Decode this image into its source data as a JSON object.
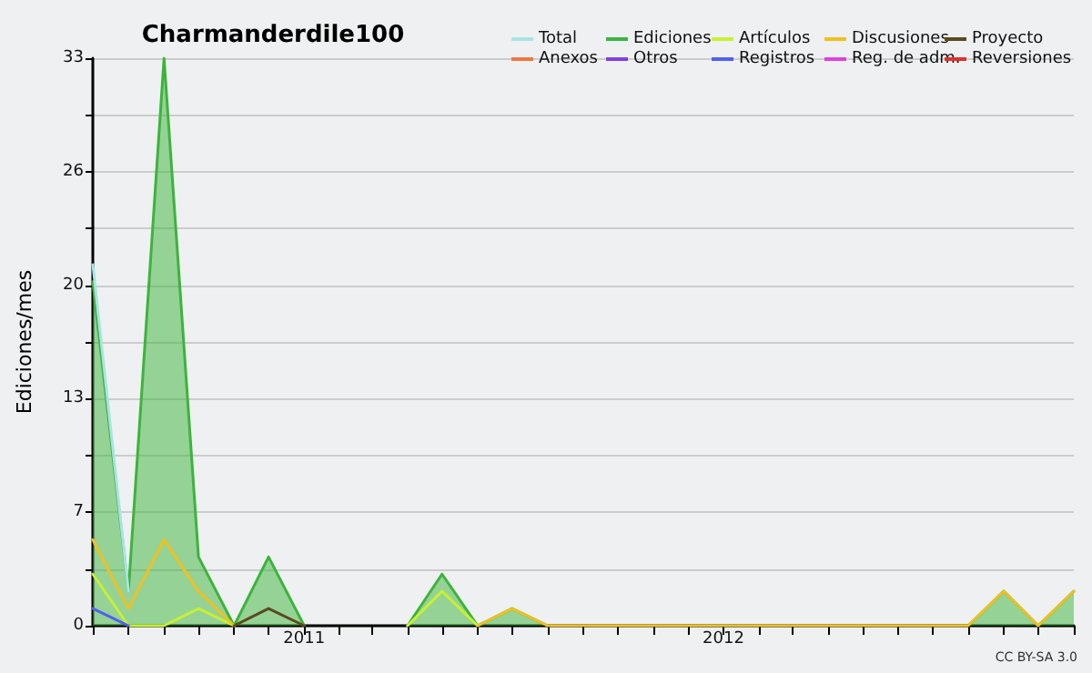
{
  "chart_data": {
    "type": "line",
    "title": "Charmanderdile100",
    "ylabel": "Ediciones/mes",
    "x": [
      "2010-07",
      "2010-08",
      "2010-09",
      "2010-10",
      "2010-11",
      "2010-12",
      "2011-01",
      "2011-02",
      "2011-03",
      "2011-04",
      "2011-05",
      "2011-06",
      "2011-07",
      "2011-08",
      "2011-09",
      "2011-10",
      "2011-11",
      "2011-12",
      "2012-01",
      "2012-02",
      "2012-03",
      "2012-04",
      "2012-05",
      "2012-06",
      "2012-07",
      "2012-08",
      "2012-09",
      "2012-10",
      "2012-11"
    ],
    "xlim": [
      "2010-07",
      "2012-11"
    ],
    "xticks": [
      {
        "value": "2010-07",
        "label": null
      },
      {
        "value": "2010-08",
        "label": null
      },
      {
        "value": "2010-09",
        "label": null
      },
      {
        "value": "2010-10",
        "label": null
      },
      {
        "value": "2010-11",
        "label": null
      },
      {
        "value": "2010-12",
        "label": null
      },
      {
        "value": "2011-01",
        "label": "2011"
      },
      {
        "value": "2011-02",
        "label": null
      },
      {
        "value": "2011-03",
        "label": null
      },
      {
        "value": "2011-04",
        "label": null
      },
      {
        "value": "2011-05",
        "label": null
      },
      {
        "value": "2011-06",
        "label": null
      },
      {
        "value": "2011-07",
        "label": null
      },
      {
        "value": "2011-08",
        "label": null
      },
      {
        "value": "2011-09",
        "label": null
      },
      {
        "value": "2011-10",
        "label": null
      },
      {
        "value": "2011-11",
        "label": null
      },
      {
        "value": "2011-12",
        "label": null
      },
      {
        "value": "2012-01",
        "label": "2012"
      },
      {
        "value": "2012-02",
        "label": null
      },
      {
        "value": "2012-03",
        "label": null
      },
      {
        "value": "2012-04",
        "label": null
      },
      {
        "value": "2012-05",
        "label": null
      },
      {
        "value": "2012-06",
        "label": null
      },
      {
        "value": "2012-07",
        "label": null
      },
      {
        "value": "2012-08",
        "label": null
      },
      {
        "value": "2012-09",
        "label": null
      },
      {
        "value": "2012-10",
        "label": null
      },
      {
        "value": "2012-11",
        "label": null
      }
    ],
    "ylim": [
      0,
      33
    ],
    "yticks": [
      0,
      {
        "value": 3.3,
        "label": null
      },
      {
        "value": 6.6,
        "label": "7"
      },
      {
        "value": 9.9,
        "label": null
      },
      {
        "value": 13.2,
        "label": "13"
      },
      {
        "value": 16.5,
        "label": null
      },
      {
        "value": 19.8,
        "label": "20"
      },
      {
        "value": 23.1,
        "label": null
      },
      {
        "value": 26.4,
        "label": "26"
      },
      {
        "value": 29.7,
        "label": null
      },
      33
    ],
    "grid": "y",
    "legend": "top right",
    "marker": "none",
    "line_style": "solid",
    "annotations": [
      "CC BY-SA 3.0"
    ],
    "series": [
      {
        "name": "Total",
        "color": "#a8e4e4",
        "values": [
          21,
          2,
          null,
          null,
          null,
          null,
          null,
          null,
          null,
          null,
          null,
          null,
          null,
          null,
          null,
          null,
          null,
          null,
          null,
          null,
          null,
          null,
          null,
          null,
          null,
          null,
          null,
          null,
          null
        ]
      },
      {
        "name": "Ediciones",
        "type": "area",
        "color": "#3cb43c",
        "values": [
          20,
          2,
          33,
          4,
          0,
          4,
          0,
          null,
          null,
          0,
          3,
          0,
          1,
          0,
          null,
          null,
          null,
          null,
          null,
          null,
          null,
          null,
          null,
          null,
          null,
          0,
          2,
          0,
          2
        ]
      },
      {
        "name": "Artículos",
        "color": "#c8f032",
        "values": [
          3,
          0,
          0,
          1,
          0,
          null,
          null,
          null,
          null,
          0,
          2,
          0,
          null,
          null,
          null,
          null,
          null,
          null,
          null,
          null,
          null,
          null,
          null,
          null,
          null,
          null,
          null,
          null,
          null
        ]
      },
      {
        "name": "Discusiones",
        "color": "#f0c020",
        "values": [
          5,
          1,
          5,
          2,
          0,
          null,
          null,
          null,
          null,
          null,
          null,
          0,
          1,
          0,
          0,
          0,
          0,
          0,
          0,
          0,
          0,
          0,
          0,
          0,
          0,
          0,
          2,
          0,
          2
        ]
      },
      {
        "name": "Proyecto",
        "color": "#5a4a20",
        "values": [
          null,
          null,
          null,
          null,
          0,
          1,
          0,
          null,
          null,
          null,
          null,
          null,
          null,
          null,
          null,
          null,
          null,
          null,
          null,
          null,
          null,
          null,
          null,
          null,
          null,
          null,
          null,
          null,
          null
        ]
      },
      {
        "name": "Anexos",
        "color": "#f07840",
        "values": [
          null,
          null,
          null,
          null,
          null,
          null,
          null,
          null,
          null,
          null,
          null,
          null,
          null,
          null,
          null,
          null,
          null,
          null,
          null,
          null,
          null,
          null,
          null,
          null,
          null,
          null,
          null,
          null,
          null
        ]
      },
      {
        "name": "Otros",
        "color": "#8040e0",
        "values": [
          null,
          null,
          null,
          null,
          null,
          null,
          null,
          null,
          null,
          null,
          null,
          null,
          null,
          null,
          null,
          null,
          null,
          null,
          null,
          null,
          null,
          null,
          null,
          null,
          null,
          null,
          null,
          null,
          null
        ]
      },
      {
        "name": "Registros",
        "color": "#5060f0",
        "values": [
          1,
          0,
          null,
          null,
          null,
          null,
          null,
          null,
          null,
          null,
          null,
          null,
          null,
          null,
          null,
          null,
          null,
          null,
          null,
          null,
          null,
          null,
          null,
          null,
          null,
          null,
          null,
          null,
          null
        ]
      },
      {
        "name": "Reg. de adm.",
        "color": "#e040e0",
        "values": [
          null,
          null,
          null,
          null,
          null,
          null,
          null,
          null,
          null,
          null,
          null,
          null,
          null,
          null,
          null,
          null,
          null,
          null,
          null,
          null,
          null,
          null,
          null,
          null,
          null,
          null,
          null,
          null,
          null
        ]
      },
      {
        "name": "Reversiones",
        "color": "#e03030",
        "values": [
          null,
          null,
          null,
          null,
          null,
          null,
          null,
          null,
          null,
          null,
          null,
          null,
          null,
          null,
          null,
          null,
          null,
          null,
          null,
          null,
          null,
          null,
          null,
          null,
          null,
          null,
          null,
          null,
          null
        ]
      }
    ]
  }
}
